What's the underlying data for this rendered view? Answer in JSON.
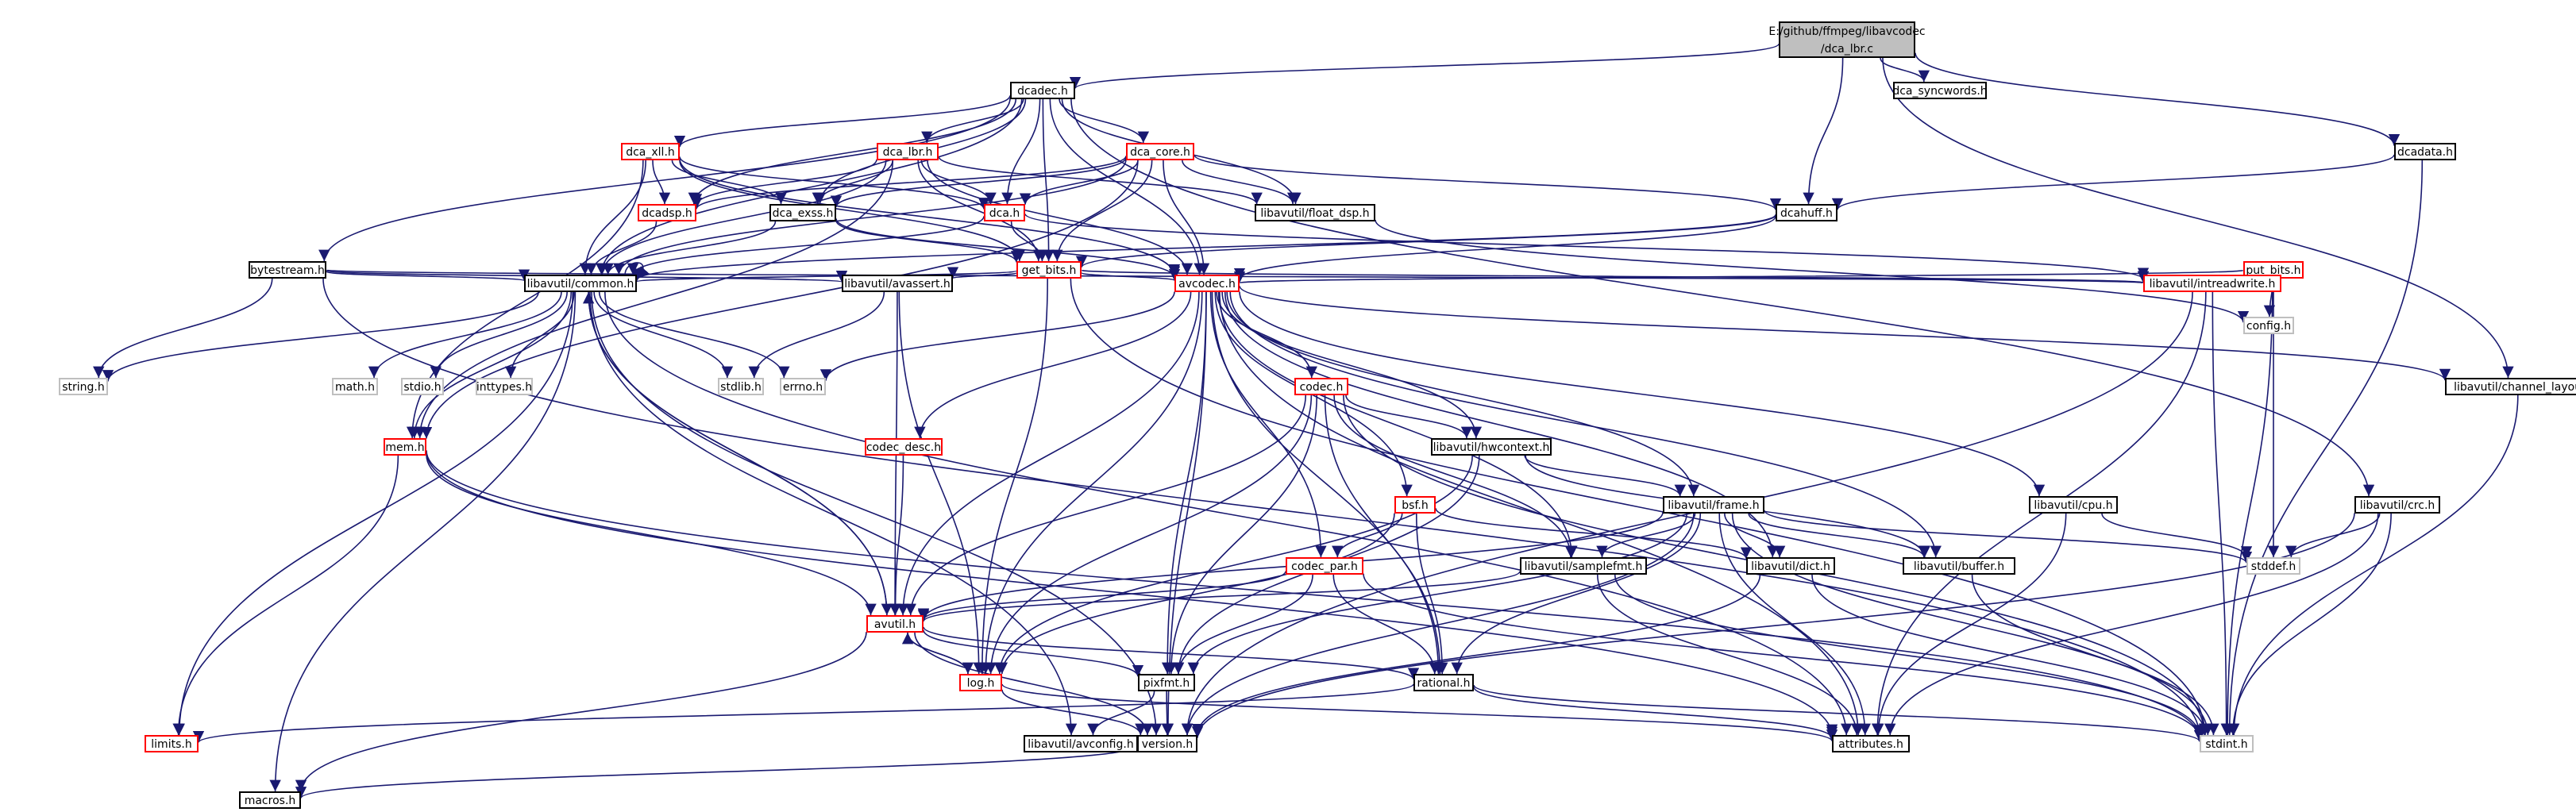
{
  "colors": {
    "edge": "#191970",
    "border_black": "#000000",
    "border_red": "#ff0000",
    "border_gray": "#bfbfbf",
    "root_fill": "#bfbfbf",
    "node_fill": "#ffffff"
  },
  "graph": {
    "root": "E:/github/ffmpeg/libavcodec/dca_lbr.c",
    "nodes": [
      {
        "id": "root",
        "lines": [
          "E:/github/ffmpeg/libavcodec",
          "/dca_lbr.c"
        ],
        "style": "root"
      },
      {
        "id": "dcadec_h",
        "lines": [
          "dcadec.h"
        ],
        "style": "black"
      },
      {
        "id": "dca_syncwords_h",
        "lines": [
          "dca_syncwords.h"
        ],
        "style": "black"
      },
      {
        "id": "dcadata_h",
        "lines": [
          "dcadata.h"
        ],
        "style": "black"
      },
      {
        "id": "dca_xll_h",
        "lines": [
          "dca_xll.h"
        ],
        "style": "red"
      },
      {
        "id": "dca_lbr_h",
        "lines": [
          "dca_lbr.h"
        ],
        "style": "red"
      },
      {
        "id": "dca_core_h",
        "lines": [
          "dca_core.h"
        ],
        "style": "red"
      },
      {
        "id": "dcadsp_h",
        "lines": [
          "dcadsp.h"
        ],
        "style": "red"
      },
      {
        "id": "dca_exss_h",
        "lines": [
          "dca_exss.h"
        ],
        "style": "black"
      },
      {
        "id": "dca_h",
        "lines": [
          "dca.h"
        ],
        "style": "red"
      },
      {
        "id": "float_dsp_h",
        "lines": [
          "libavutil/float_dsp.h"
        ],
        "style": "black"
      },
      {
        "id": "dcahuff_h",
        "lines": [
          "dcahuff.h"
        ],
        "style": "black"
      },
      {
        "id": "bytestream_h",
        "lines": [
          "bytestream.h"
        ],
        "style": "black"
      },
      {
        "id": "get_bits_h",
        "lines": [
          "get_bits.h"
        ],
        "style": "red"
      },
      {
        "id": "put_bits_h",
        "lines": [
          "put_bits.h"
        ],
        "style": "red"
      },
      {
        "id": "common_h",
        "lines": [
          "libavutil/common.h"
        ],
        "style": "black"
      },
      {
        "id": "avassert_h",
        "lines": [
          "libavutil/avassert.h"
        ],
        "style": "black"
      },
      {
        "id": "avcodec_h",
        "lines": [
          "avcodec.h"
        ],
        "style": "red"
      },
      {
        "id": "intreadwrite_h",
        "lines": [
          "libavutil/intreadwrite.h"
        ],
        "style": "red"
      },
      {
        "id": "config_h",
        "lines": [
          "config.h"
        ],
        "style": "gray"
      },
      {
        "id": "string_h",
        "lines": [
          "string.h"
        ],
        "style": "gray"
      },
      {
        "id": "math_h",
        "lines": [
          "math.h"
        ],
        "style": "gray"
      },
      {
        "id": "stdio_h",
        "lines": [
          "stdio.h"
        ],
        "style": "gray"
      },
      {
        "id": "inttypes_h",
        "lines": [
          "inttypes.h"
        ],
        "style": "gray"
      },
      {
        "id": "stdlib_h",
        "lines": [
          "stdlib.h"
        ],
        "style": "gray"
      },
      {
        "id": "errno_h",
        "lines": [
          "errno.h"
        ],
        "style": "gray"
      },
      {
        "id": "channel_layout_h",
        "lines": [
          "libavutil/channel_layout.h"
        ],
        "style": "black"
      },
      {
        "id": "codec_h",
        "lines": [
          "codec.h"
        ],
        "style": "red"
      },
      {
        "id": "mem_h",
        "lines": [
          "mem.h"
        ],
        "style": "red"
      },
      {
        "id": "codec_desc_h",
        "lines": [
          "codec_desc.h"
        ],
        "style": "red"
      },
      {
        "id": "hwcontext_h",
        "lines": [
          "libavutil/hwcontext.h"
        ],
        "style": "black"
      },
      {
        "id": "frame_h",
        "lines": [
          "libavutil/frame.h"
        ],
        "style": "black"
      },
      {
        "id": "bsf_h",
        "lines": [
          "bsf.h"
        ],
        "style": "red"
      },
      {
        "id": "cpu_h",
        "lines": [
          "libavutil/cpu.h"
        ],
        "style": "black"
      },
      {
        "id": "crc_h",
        "lines": [
          "libavutil/crc.h"
        ],
        "style": "black"
      },
      {
        "id": "codec_par_h",
        "lines": [
          "codec_par.h"
        ],
        "style": "red"
      },
      {
        "id": "samplefmt_h",
        "lines": [
          "libavutil/samplefmt.h"
        ],
        "style": "black"
      },
      {
        "id": "dict_h",
        "lines": [
          "libavutil/dict.h"
        ],
        "style": "black"
      },
      {
        "id": "buffer_h",
        "lines": [
          "libavutil/buffer.h"
        ],
        "style": "black"
      },
      {
        "id": "stddef_h",
        "lines": [
          "stddef.h"
        ],
        "style": "gray"
      },
      {
        "id": "avutil_h",
        "lines": [
          "avutil.h"
        ],
        "style": "red"
      },
      {
        "id": "log_h",
        "lines": [
          "log.h"
        ],
        "style": "red"
      },
      {
        "id": "pixfmt_h",
        "lines": [
          "pixfmt.h"
        ],
        "style": "black"
      },
      {
        "id": "rational_h",
        "lines": [
          "rational.h"
        ],
        "style": "black"
      },
      {
        "id": "limits_h",
        "lines": [
          "limits.h"
        ],
        "style": "red"
      },
      {
        "id": "avconfig_h",
        "lines": [
          "libavutil/avconfig.h"
        ],
        "style": "black"
      },
      {
        "id": "version_h",
        "lines": [
          "version.h"
        ],
        "style": "black"
      },
      {
        "id": "attributes_h",
        "lines": [
          "attributes.h"
        ],
        "style": "black"
      },
      {
        "id": "stdint_h",
        "lines": [
          "stdint.h"
        ],
        "style": "gray"
      },
      {
        "id": "macros_h",
        "lines": [
          "macros.h"
        ],
        "style": "black"
      }
    ],
    "edges": [
      [
        "root",
        "dcadec_h"
      ],
      [
        "root",
        "dca_syncwords_h"
      ],
      [
        "root",
        "dcadata_h"
      ],
      [
        "root",
        "dcahuff_h"
      ],
      [
        "root",
        "channel_layout_h"
      ],
      [
        "dcadec_h",
        "bytestream_h"
      ],
      [
        "dcadec_h",
        "dca_xll_h"
      ],
      [
        "dcadec_h",
        "dca_lbr_h"
      ],
      [
        "dcadec_h",
        "dca_core_h"
      ],
      [
        "dcadec_h",
        "dcadsp_h"
      ],
      [
        "dcadec_h",
        "dca_exss_h"
      ],
      [
        "dcadec_h",
        "dca_h"
      ],
      [
        "dcadec_h",
        "float_dsp_h"
      ],
      [
        "dcadec_h",
        "get_bits_h"
      ],
      [
        "dcadec_h",
        "common_h"
      ],
      [
        "dcadec_h",
        "avcodec_h"
      ],
      [
        "dcadec_h",
        "crc_h"
      ],
      [
        "dcadata_h",
        "dcahuff_h"
      ],
      [
        "dcadata_h",
        "stdint_h"
      ],
      [
        "dca_xll_h",
        "dcadsp_h"
      ],
      [
        "dca_xll_h",
        "dca_exss_h"
      ],
      [
        "dca_xll_h",
        "dca_h"
      ],
      [
        "dca_xll_h",
        "get_bits_h"
      ],
      [
        "dca_xll_h",
        "common_h"
      ],
      [
        "dca_xll_h",
        "avcodec_h"
      ],
      [
        "dca_xll_h",
        "mem_h"
      ],
      [
        "dca_lbr_h",
        "dcadsp_h"
      ],
      [
        "dca_lbr_h",
        "dca_exss_h"
      ],
      [
        "dca_lbr_h",
        "dca_h"
      ],
      [
        "dca_lbr_h",
        "float_dsp_h"
      ],
      [
        "dca_lbr_h",
        "get_bits_h"
      ],
      [
        "dca_lbr_h",
        "common_h"
      ],
      [
        "dca_lbr_h",
        "avcodec_h"
      ],
      [
        "dca_lbr_h",
        "mem_h"
      ],
      [
        "dca_core_h",
        "dcadsp_h"
      ],
      [
        "dca_core_h",
        "dca_exss_h"
      ],
      [
        "dca_core_h",
        "dca_h"
      ],
      [
        "dca_core_h",
        "float_dsp_h"
      ],
      [
        "dca_core_h",
        "get_bits_h"
      ],
      [
        "dca_core_h",
        "common_h"
      ],
      [
        "dca_core_h",
        "avcodec_h"
      ],
      [
        "dca_core_h",
        "dcahuff_h"
      ],
      [
        "dca_core_h",
        "mem_h"
      ],
      [
        "dcadsp_h",
        "common_h"
      ],
      [
        "dca_exss_h",
        "common_h"
      ],
      [
        "dca_exss_h",
        "get_bits_h"
      ],
      [
        "dca_exss_h",
        "avcodec_h"
      ],
      [
        "dca_h",
        "get_bits_h"
      ],
      [
        "dca_h",
        "common_h"
      ],
      [
        "dca_h",
        "intreadwrite_h"
      ],
      [
        "float_dsp_h",
        "config_h"
      ],
      [
        "dcahuff_h",
        "get_bits_h"
      ],
      [
        "dcahuff_h",
        "avcodec_h"
      ],
      [
        "dcahuff_h",
        "common_h"
      ],
      [
        "bytestream_h",
        "common_h"
      ],
      [
        "bytestream_h",
        "avassert_h"
      ],
      [
        "bytestream_h",
        "intreadwrite_h"
      ],
      [
        "bytestream_h",
        "string_h"
      ],
      [
        "bytestream_h",
        "stdint_h"
      ],
      [
        "get_bits_h",
        "common_h"
      ],
      [
        "get_bits_h",
        "avassert_h"
      ],
      [
        "get_bits_h",
        "avcodec_h"
      ],
      [
        "get_bits_h",
        "intreadwrite_h"
      ],
      [
        "get_bits_h",
        "log_h"
      ],
      [
        "get_bits_h",
        "stdint_h"
      ],
      [
        "put_bits_h",
        "config_h"
      ],
      [
        "put_bits_h",
        "avcodec_h"
      ],
      [
        "put_bits_h",
        "intreadwrite_h"
      ],
      [
        "put_bits_h",
        "stddef_h"
      ],
      [
        "put_bits_h",
        "stdint_h"
      ],
      [
        "common_h",
        "common_h"
      ],
      [
        "common_h",
        "string_h"
      ],
      [
        "common_h",
        "math_h"
      ],
      [
        "common_h",
        "stdio_h"
      ],
      [
        "common_h",
        "inttypes_h"
      ],
      [
        "common_h",
        "stdlib_h"
      ],
      [
        "common_h",
        "errno_h"
      ],
      [
        "common_h",
        "mem_h"
      ],
      [
        "common_h",
        "avutil_h"
      ],
      [
        "common_h",
        "limits_h"
      ],
      [
        "common_h",
        "attributes_h"
      ],
      [
        "common_h",
        "macros_h"
      ],
      [
        "common_h",
        "version_h"
      ],
      [
        "common_h",
        "avconfig_h"
      ],
      [
        "avassert_h",
        "stdlib_h"
      ],
      [
        "avassert_h",
        "avutil_h"
      ],
      [
        "avassert_h",
        "log_h"
      ],
      [
        "avcodec_h",
        "errno_h"
      ],
      [
        "avcodec_h",
        "channel_layout_h"
      ],
      [
        "avcodec_h",
        "codec_h"
      ],
      [
        "avcodec_h",
        "codec_desc_h"
      ],
      [
        "avcodec_h",
        "hwcontext_h"
      ],
      [
        "avcodec_h",
        "frame_h"
      ],
      [
        "avcodec_h",
        "bsf_h"
      ],
      [
        "avcodec_h",
        "cpu_h"
      ],
      [
        "avcodec_h",
        "codec_par_h"
      ],
      [
        "avcodec_h",
        "samplefmt_h"
      ],
      [
        "avcodec_h",
        "dict_h"
      ],
      [
        "avcodec_h",
        "buffer_h"
      ],
      [
        "avcodec_h",
        "avutil_h"
      ],
      [
        "avcodec_h",
        "log_h"
      ],
      [
        "avcodec_h",
        "pixfmt_h"
      ],
      [
        "avcodec_h",
        "rational_h"
      ],
      [
        "avcodec_h",
        "attributes_h"
      ],
      [
        "avcodec_h",
        "version_h"
      ],
      [
        "intreadwrite_h",
        "attributes_h"
      ],
      [
        "intreadwrite_h",
        "stdint_h"
      ],
      [
        "intreadwrite_h",
        "version_h"
      ],
      [
        "channel_layout_h",
        "stdint_h"
      ],
      [
        "codec_h",
        "hwcontext_h"
      ],
      [
        "codec_h",
        "samplefmt_h"
      ],
      [
        "codec_h",
        "avutil_h"
      ],
      [
        "codec_h",
        "log_h"
      ],
      [
        "codec_h",
        "pixfmt_h"
      ],
      [
        "codec_h",
        "rational_h"
      ],
      [
        "codec_h",
        "stdint_h"
      ],
      [
        "mem_h",
        "limits_h"
      ],
      [
        "mem_h",
        "avutil_h"
      ],
      [
        "mem_h",
        "attributes_h"
      ],
      [
        "mem_h",
        "stdint_h"
      ],
      [
        "codec_desc_h",
        "avutil_h"
      ],
      [
        "hwcontext_h",
        "frame_h"
      ],
      [
        "hwcontext_h",
        "buffer_h"
      ],
      [
        "hwcontext_h",
        "pixfmt_h"
      ],
      [
        "hwcontext_h",
        "log_h"
      ],
      [
        "frame_h",
        "samplefmt_h"
      ],
      [
        "frame_h",
        "dict_h"
      ],
      [
        "frame_h",
        "buffer_h"
      ],
      [
        "frame_h",
        "avutil_h"
      ],
      [
        "frame_h",
        "pixfmt_h"
      ],
      [
        "frame_h",
        "rational_h"
      ],
      [
        "frame_h",
        "stddef_h"
      ],
      [
        "frame_h",
        "stdint_h"
      ],
      [
        "frame_h",
        "attributes_h"
      ],
      [
        "frame_h",
        "version_h"
      ],
      [
        "bsf_h",
        "codec_par_h"
      ],
      [
        "bsf_h",
        "dict_h"
      ],
      [
        "bsf_h",
        "log_h"
      ],
      [
        "bsf_h",
        "rational_h"
      ],
      [
        "cpu_h",
        "stddef_h"
      ],
      [
        "cpu_h",
        "attributes_h"
      ],
      [
        "crc_h",
        "stddef_h"
      ],
      [
        "crc_h",
        "stdint_h"
      ],
      [
        "crc_h",
        "attributes_h"
      ],
      [
        "crc_h",
        "version_h"
      ],
      [
        "codec_par_h",
        "avutil_h"
      ],
      [
        "codec_par_h",
        "pixfmt_h"
      ],
      [
        "codec_par_h",
        "rational_h"
      ],
      [
        "codec_par_h",
        "stdint_h"
      ],
      [
        "samplefmt_h",
        "avutil_h"
      ],
      [
        "samplefmt_h",
        "attributes_h"
      ],
      [
        "samplefmt_h",
        "stdint_h"
      ],
      [
        "dict_h",
        "stdint_h"
      ],
      [
        "dict_h",
        "version_h"
      ],
      [
        "buffer_h",
        "stdint_h"
      ],
      [
        "avutil_h",
        "log_h"
      ],
      [
        "avutil_h",
        "pixfmt_h"
      ],
      [
        "avutil_h",
        "rational_h"
      ],
      [
        "avutil_h",
        "common_h"
      ],
      [
        "avutil_h",
        "version_h"
      ],
      [
        "avutil_h",
        "macros_h"
      ],
      [
        "log_h",
        "avutil_h"
      ],
      [
        "log_h",
        "attributes_h"
      ],
      [
        "log_h",
        "version_h"
      ],
      [
        "pixfmt_h",
        "avconfig_h"
      ],
      [
        "pixfmt_h",
        "version_h"
      ],
      [
        "rational_h",
        "attributes_h"
      ],
      [
        "rational_h",
        "stdint_h"
      ],
      [
        "rational_h",
        "limits_h"
      ],
      [
        "version_h",
        "macros_h"
      ]
    ]
  }
}
